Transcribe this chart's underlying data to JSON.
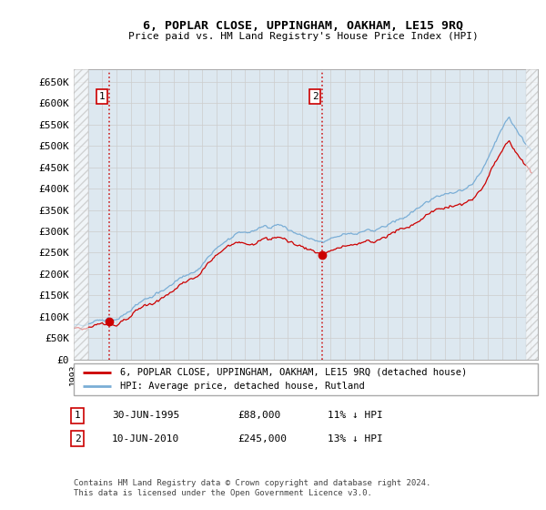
{
  "title": "6, POPLAR CLOSE, UPPINGHAM, OAKHAM, LE15 9RQ",
  "subtitle": "Price paid vs. HM Land Registry's House Price Index (HPI)",
  "background_color": "#dde8f0",
  "hpi_color": "#7aaed6",
  "price_color": "#cc0000",
  "marker_color": "#cc0000",
  "dashed_color": "#cc0000",
  "ylim": [
    0,
    680000
  ],
  "yticks": [
    0,
    50000,
    100000,
    150000,
    200000,
    250000,
    300000,
    350000,
    400000,
    450000,
    500000,
    550000,
    600000,
    650000
  ],
  "ytick_labels": [
    "£0",
    "£50K",
    "£100K",
    "£150K",
    "£200K",
    "£250K",
    "£300K",
    "£350K",
    "£400K",
    "£450K",
    "£500K",
    "£550K",
    "£600K",
    "£650K"
  ],
  "sale1_date_num": 1995.5,
  "sale1_price": 88000,
  "sale2_date_num": 2010.44,
  "sale2_price": 245000,
  "legend_label_price": "6, POPLAR CLOSE, UPPINGHAM, OAKHAM, LE15 9RQ (detached house)",
  "legend_label_hpi": "HPI: Average price, detached house, Rutland",
  "footer": "Contains HM Land Registry data © Crown copyright and database right 2024.\nThis data is licensed under the Open Government Licence v3.0.",
  "x_start_year": 1993,
  "x_end_year": 2025
}
